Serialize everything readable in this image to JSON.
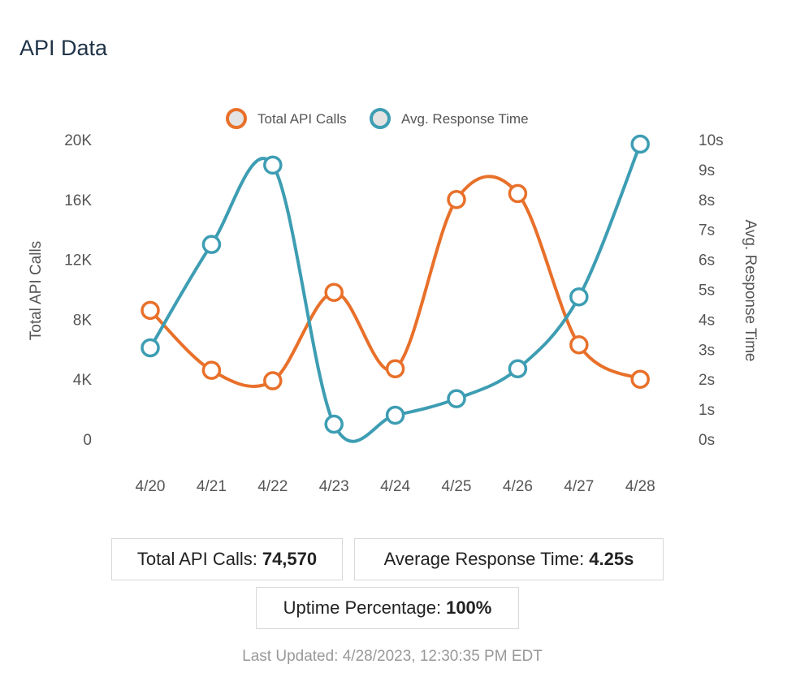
{
  "title": "API Data",
  "chart_data": {
    "type": "line",
    "smooth": true,
    "categories": [
      "4/20",
      "4/21",
      "4/22",
      "4/23",
      "4/24",
      "4/25",
      "4/26",
      "4/27",
      "4/28"
    ],
    "series": [
      {
        "name": "Total API Calls",
        "axis": "left",
        "color": "#e8702a",
        "values": [
          8600,
          4600,
          3900,
          9800,
          4700,
          16000,
          16400,
          6300,
          4000
        ]
      },
      {
        "name": "Avg. Response Time",
        "axis": "right",
        "color": "#3d9db3",
        "values": [
          3.05,
          6.5,
          9.15,
          0.5,
          0.8,
          1.35,
          2.35,
          4.75,
          9.85
        ]
      }
    ],
    "y_left": {
      "label": "Total API Calls",
      "range": [
        0,
        20000
      ],
      "ticks": [
        "0",
        "4K",
        "8K",
        "12K",
        "16K",
        "20K"
      ]
    },
    "y_right": {
      "label": "Avg. Response Time",
      "range": [
        0,
        10
      ],
      "ticks": [
        "0s",
        "1s",
        "2s",
        "3s",
        "4s",
        "5s",
        "6s",
        "7s",
        "8s",
        "9s",
        "10s"
      ]
    },
    "grid": false,
    "legend_position": "top-center"
  },
  "stats": {
    "total_calls_label": "Total API Calls:",
    "total_calls_value": "74,570",
    "avg_response_label": "Average Response Time:",
    "avg_response_value": "4.25s",
    "uptime_label": "Uptime Percentage:",
    "uptime_value": "100%"
  },
  "last_updated": "Last Updated: 4/28/2023, 12:30:35 PM EDT"
}
